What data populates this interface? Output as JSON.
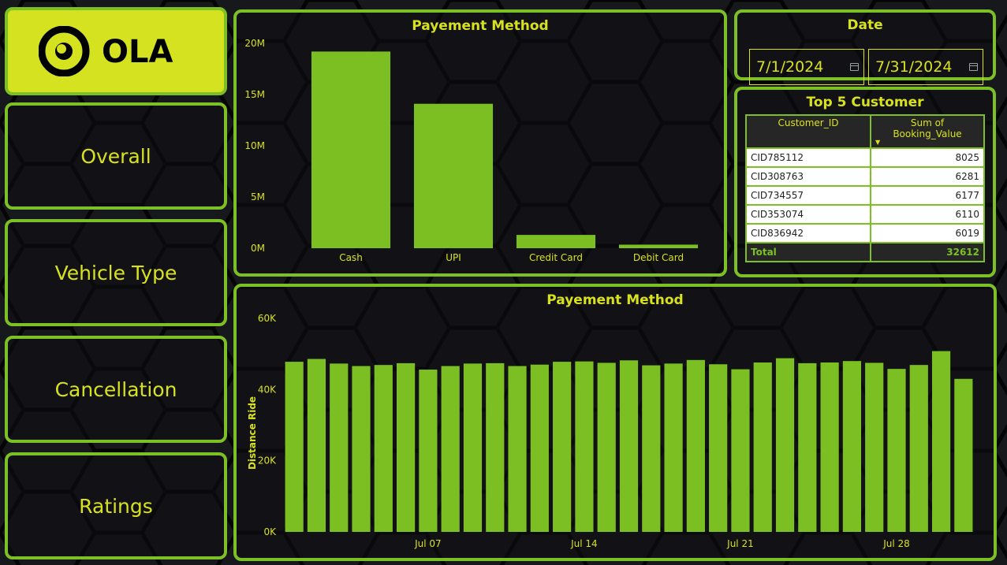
{
  "colors": {
    "accent": "#7cc026",
    "text": "#d8e21c",
    "logo_bg": "#d5e21f",
    "bar": "#7bbf22"
  },
  "logo": {
    "text": "OLA"
  },
  "nav": [
    {
      "label": "Overall"
    },
    {
      "label": "Vehicle Type"
    },
    {
      "label": "Cancellation"
    },
    {
      "label": "Ratings"
    }
  ],
  "date_filter": {
    "title": "Date",
    "start": "7/1/2024",
    "end": "7/31/2024"
  },
  "top_customers": {
    "title": "Top 5 Customer",
    "columns": [
      "Customer_ID",
      "Sum of Booking_Value"
    ],
    "rows": [
      [
        "CID785112",
        "8025"
      ],
      [
        "CID308763",
        "6281"
      ],
      [
        "CID734557",
        "6177"
      ],
      [
        "CID353074",
        "6110"
      ],
      [
        "CID836942",
        "6019"
      ]
    ],
    "total_label": "Total",
    "total_value": "32612"
  },
  "chart_data": [
    {
      "type": "bar",
      "title": "Payement Method",
      "categories": [
        "Cash",
        "UPI",
        "Credit Card",
        "Debit Card"
      ],
      "values": [
        19200000,
        14100000,
        1300000,
        350000
      ],
      "yticks": [
        "0M",
        "5M",
        "10M",
        "15M",
        "20M"
      ],
      "ylim": [
        0,
        20000000
      ],
      "grid": false
    },
    {
      "type": "bar",
      "title": "Payement Method",
      "ylabel": "Distance Ride",
      "x": [
        "Jul 01",
        "Jul 02",
        "Jul 03",
        "Jul 04",
        "Jul 05",
        "Jul 06",
        "Jul 07",
        "Jul 08",
        "Jul 09",
        "Jul 10",
        "Jul 11",
        "Jul 12",
        "Jul 13",
        "Jul 14",
        "Jul 15",
        "Jul 16",
        "Jul 17",
        "Jul 18",
        "Jul 19",
        "Jul 20",
        "Jul 21",
        "Jul 22",
        "Jul 23",
        "Jul 24",
        "Jul 25",
        "Jul 26",
        "Jul 27",
        "Jul 28",
        "Jul 29",
        "Jul 30",
        "Jul 31"
      ],
      "values": [
        47800,
        48600,
        47300,
        46600,
        46900,
        47400,
        45600,
        46600,
        47300,
        47400,
        46600,
        47000,
        47800,
        47900,
        47500,
        48200,
        46800,
        47300,
        48300,
        47100,
        45700,
        47600,
        48800,
        47400,
        47600,
        48000,
        47500,
        45800,
        46900,
        50800,
        43000
      ],
      "xticks": [
        "Jul 07",
        "Jul 14",
        "Jul 21",
        "Jul 28"
      ],
      "yticks": [
        "0K",
        "20K",
        "40K",
        "60K"
      ],
      "ylim": [
        0,
        60000
      ],
      "grid": false
    }
  ]
}
